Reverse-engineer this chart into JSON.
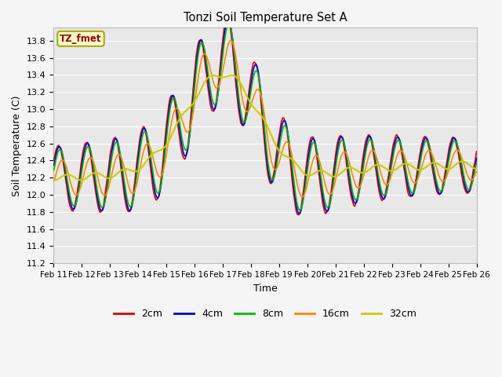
{
  "title": "Tonzi Soil Temperature Set A",
  "xlabel": "Time",
  "ylabel": "Soil Temperature (C)",
  "ylim": [
    11.2,
    13.95
  ],
  "legend_label": "TZ_fmet",
  "legend_box_color": "#ffffcc",
  "legend_box_edge": "#aaaa00",
  "series": {
    "2cm": {
      "color": "#dd0000",
      "lw": 1.2
    },
    "4cm": {
      "color": "#0000dd",
      "lw": 1.2
    },
    "8cm": {
      "color": "#00bb00",
      "lw": 1.2
    },
    "16cm": {
      "color": "#ff8800",
      "lw": 1.2
    },
    "32cm": {
      "color": "#cccc00",
      "lw": 1.5
    }
  },
  "xtick_labels": [
    "Feb 11",
    "Feb 12",
    "Feb 13",
    "Feb 14",
    "Feb 15",
    "Feb 16",
    "Feb 17",
    "Feb 18",
    "Feb 19",
    "Feb 20",
    "Feb 21",
    "Feb 22",
    "Feb 23",
    "Feb 24",
    "Feb 25",
    "Feb 26"
  ],
  "ytick_vals": [
    11.2,
    11.4,
    11.6,
    11.8,
    12.0,
    12.2,
    12.4,
    12.6,
    12.8,
    13.0,
    13.2,
    13.4,
    13.6,
    13.8
  ],
  "fig_bg": "#f5f5f5",
  "plot_bg": "#e8e8e8"
}
